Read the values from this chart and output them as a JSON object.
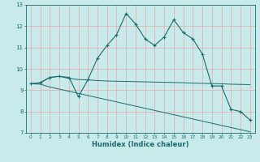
{
  "xlabel": "Humidex (Indice chaleur)",
  "x_values": [
    0,
    1,
    2,
    3,
    4,
    5,
    6,
    7,
    8,
    9,
    10,
    11,
    12,
    13,
    14,
    15,
    16,
    17,
    18,
    19,
    20,
    21,
    22,
    23
  ],
  "line1": [
    9.3,
    9.35,
    9.6,
    9.65,
    9.6,
    8.7,
    9.5,
    10.5,
    11.1,
    11.6,
    12.6,
    12.1,
    11.4,
    11.1,
    11.5,
    12.3,
    11.7,
    11.4,
    10.7,
    9.2,
    9.2,
    8.1,
    8.0,
    7.6
  ],
  "line2": [
    9.3,
    9.35,
    9.6,
    9.65,
    9.55,
    9.5,
    9.48,
    9.45,
    9.43,
    9.42,
    9.41,
    9.4,
    9.39,
    9.38,
    9.37,
    9.36,
    9.35,
    9.33,
    9.32,
    9.31,
    9.3,
    9.28,
    9.27,
    9.26
  ],
  "line3": [
    9.3,
    9.28,
    9.15,
    9.05,
    8.95,
    8.85,
    8.75,
    8.65,
    8.55,
    8.45,
    8.35,
    8.25,
    8.15,
    8.05,
    7.95,
    7.85,
    7.75,
    7.65,
    7.55,
    7.45,
    7.35,
    7.25,
    7.15,
    7.05
  ],
  "line_color": "#1a6b6b",
  "bg_color": "#c8eaea",
  "grid_color": "#e8a8a8",
  "ylim": [
    7,
    13
  ],
  "xlim_min": -0.5,
  "xlim_max": 23.5,
  "yticks": [
    7,
    8,
    9,
    10,
    11,
    12,
    13
  ],
  "xticks": [
    0,
    1,
    2,
    3,
    4,
    5,
    6,
    7,
    8,
    9,
    10,
    11,
    12,
    13,
    14,
    15,
    16,
    17,
    18,
    19,
    20,
    21,
    22,
    23
  ]
}
